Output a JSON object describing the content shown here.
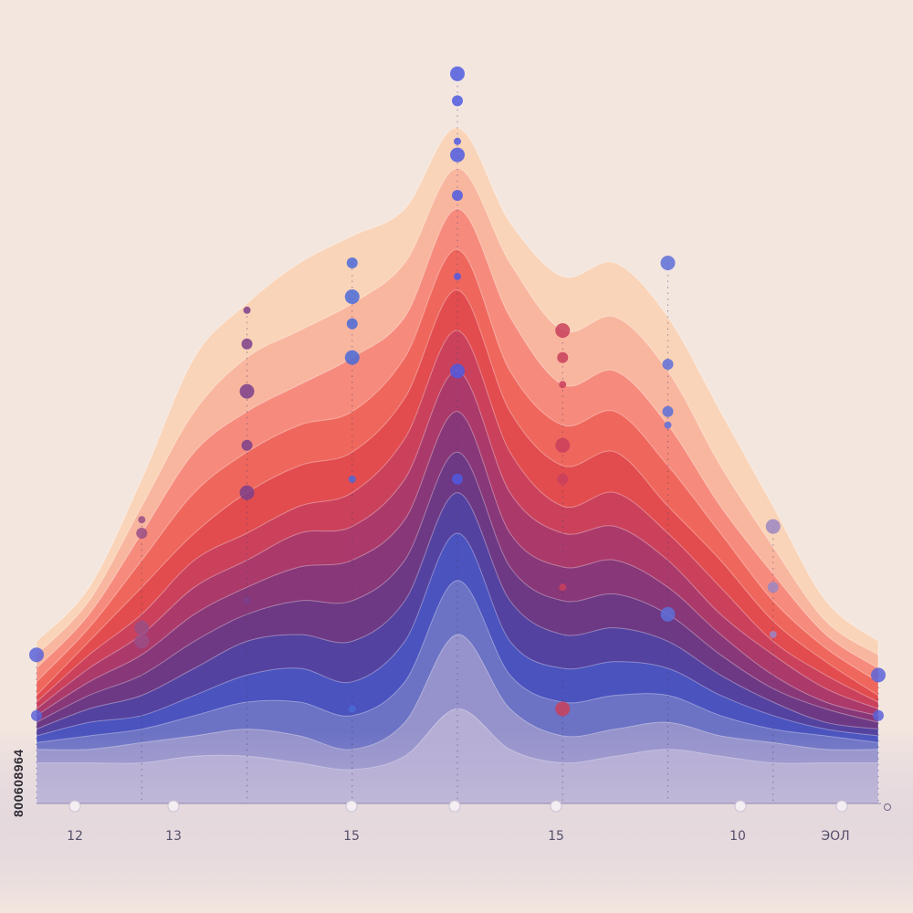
{
  "watermark": {
    "id_text": "800608964"
  },
  "chart_data": {
    "type": "area",
    "title": "",
    "xlabel": "",
    "ylabel": "",
    "legend": "none",
    "grid": false,
    "x_ticks": [
      "12",
      "13",
      "15",
      "15",
      "10",
      "ЭОЛ"
    ],
    "x_positions": [
      1,
      2,
      3,
      4,
      5,
      6,
      7,
      8,
      9,
      10,
      11,
      12,
      13,
      14,
      15,
      16,
      17
    ],
    "ylim": [
      0,
      100
    ],
    "series": [
      {
        "color": "#fbd3b4",
        "values": [
          24,
          32,
          48,
          66,
          74,
          80,
          84,
          88,
          100,
          86,
          78,
          80,
          72,
          58,
          44,
          30,
          24
        ]
      },
      {
        "color": "#f9b39c",
        "values": [
          22,
          30,
          44,
          58,
          66,
          70,
          74,
          80,
          94,
          80,
          70,
          72,
          64,
          50,
          38,
          27,
          22
        ]
      },
      {
        "color": "#f5887a",
        "values": [
          20,
          28,
          40,
          52,
          58,
          62,
          66,
          72,
          88,
          72,
          62,
          64,
          56,
          44,
          34,
          25,
          20
        ]
      },
      {
        "color": "#ee6459",
        "values": [
          18,
          26,
          36,
          46,
          52,
          56,
          58,
          66,
          82,
          64,
          56,
          58,
          50,
          40,
          30,
          23,
          18
        ]
      },
      {
        "color": "#e14a4e",
        "values": [
          16,
          24,
          32,
          40,
          46,
          50,
          52,
          60,
          76,
          58,
          50,
          52,
          44,
          36,
          27,
          21,
          16
        ]
      },
      {
        "color": "#c9405c",
        "values": [
          15,
          22,
          28,
          36,
          40,
          44,
          46,
          54,
          70,
          52,
          44,
          46,
          40,
          32,
          24,
          19,
          15
        ]
      },
      {
        "color": "#a83a6c",
        "values": [
          14,
          20,
          25,
          32,
          36,
          40,
          41,
          48,
          64,
          46,
          40,
          41,
          36,
          28,
          22,
          17,
          14
        ]
      },
      {
        "color": "#84377a",
        "values": [
          13,
          18,
          22,
          28,
          32,
          35,
          36,
          42,
          58,
          40,
          35,
          36,
          32,
          25,
          19,
          15,
          13
        ]
      },
      {
        "color": "#6a3a86",
        "values": [
          12,
          16,
          19,
          24,
          28,
          30,
          30,
          36,
          52,
          35,
          30,
          31,
          28,
          22,
          17,
          14,
          12
        ]
      },
      {
        "color": "#5343a3",
        "values": [
          11,
          14,
          16,
          20,
          24,
          25,
          24,
          30,
          46,
          30,
          25,
          26,
          24,
          19,
          15,
          12,
          11
        ]
      },
      {
        "color": "#4a55c0",
        "values": [
          10,
          12,
          13,
          16,
          19,
          20,
          18,
          24,
          40,
          24,
          20,
          21,
          20,
          16,
          13,
          11,
          10
        ]
      },
      {
        "color": "#6f75c4",
        "values": [
          9,
          10,
          11,
          13,
          15,
          15,
          13,
          18,
          33,
          19,
          15,
          16,
          16,
          13,
          11,
          10,
          9
        ]
      },
      {
        "color": "#9a96cc",
        "values": [
          8,
          8,
          9,
          10,
          11,
          10,
          8,
          12,
          25,
          14,
          10,
          11,
          12,
          10,
          9,
          8,
          8
        ]
      },
      {
        "color": "#b8b0d6",
        "values": [
          6,
          6,
          6,
          7,
          7,
          6,
          5,
          7,
          14,
          8,
          6,
          7,
          8,
          7,
          6,
          6,
          6
        ]
      }
    ],
    "dot_columns": [
      {
        "x": 1,
        "color": "#5a63d8",
        "dots": [
          22,
          13
        ]
      },
      {
        "x": 3,
        "color": "#9a4f86",
        "dots": [
          26,
          40,
          42,
          24
        ]
      },
      {
        "x": 5,
        "color": "#7b3f8b",
        "dots": [
          46,
          53,
          30,
          61,
          68,
          73
        ]
      },
      {
        "x": 7,
        "color": "#4a6ad8",
        "dots": [
          66,
          71,
          48,
          75,
          80,
          14
        ]
      },
      {
        "x": 9,
        "color": "#4f5be0",
        "dots": [
          108,
          104,
          98,
          96,
          90,
          78,
          64,
          48
        ]
      },
      {
        "x": 11,
        "color": "#c9405c",
        "dots": [
          70,
          66,
          62,
          53,
          48,
          32,
          14
        ]
      },
      {
        "x": 13,
        "color": "#5d6ed8",
        "dots": [
          80,
          58,
          56,
          28,
          65
        ]
      },
      {
        "x": 15,
        "color": "#9b86c2",
        "dots": [
          41,
          32,
          25
        ]
      },
      {
        "x": 17,
        "color": "#5a63d8",
        "dots": [
          19,
          13
        ]
      }
    ]
  }
}
